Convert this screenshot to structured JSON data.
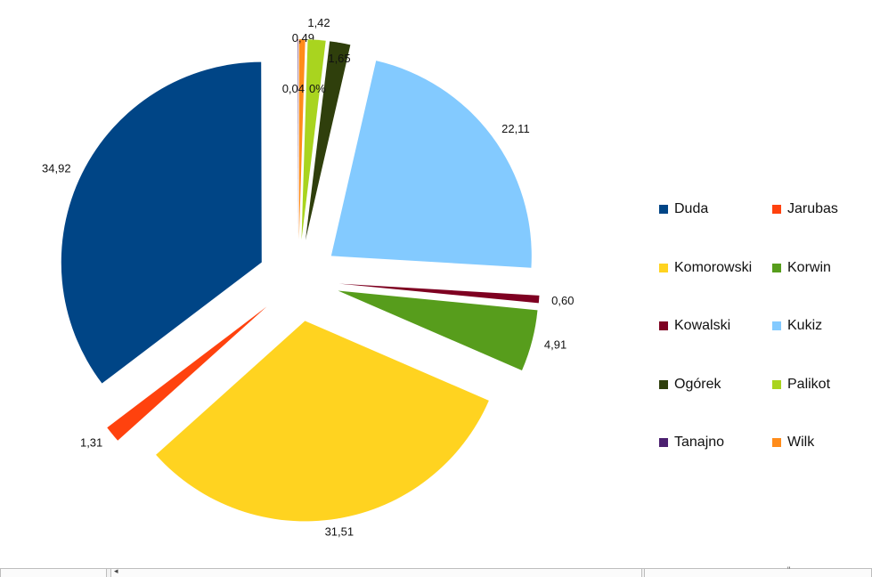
{
  "chart_data": {
    "type": "pie",
    "exploded": true,
    "start_angle_deg": 0,
    "direction": "clockwise",
    "slices": [
      {
        "name": "Wilk",
        "value": 0.49,
        "label": "0,49",
        "color": "#FF8C1A"
      },
      {
        "name": "Palikot",
        "value": 1.42,
        "label": "1,42",
        "color": "#A9D41F"
      },
      {
        "name": "Ogórek",
        "value": 1.65,
        "label": "1,65",
        "color": "#2F3F0C"
      },
      {
        "name": "Kukiz",
        "value": 22.11,
        "label": "22,11",
        "color": "#83CAFF"
      },
      {
        "name": "Kowalski",
        "value": 0.6,
        "label": "0,60",
        "color": "#7E0021"
      },
      {
        "name": "Korwin",
        "value": 4.91,
        "label": "4,91",
        "color": "#579D1C"
      },
      {
        "name": "Komorowski",
        "value": 31.51,
        "label": "31,51",
        "color": "#FFD320"
      },
      {
        "name": "Jarubas",
        "value": 1.31,
        "label": "1,31",
        "color": "#FF420E"
      },
      {
        "name": "Duda",
        "value": 34.92,
        "label": "34,92",
        "color": "#004586"
      },
      {
        "name": "Tanajno",
        "value": 0.04,
        "label": "0,04",
        "color": "#4B1F6F"
      },
      {
        "name": "",
        "value": 0.0,
        "label": "0%",
        "color": "#FFFFFF"
      }
    ],
    "legend": {
      "position": "right",
      "columns": 2,
      "entries": [
        {
          "name": "Duda",
          "color": "#004586"
        },
        {
          "name": "Jarubas",
          "color": "#FF420E"
        },
        {
          "name": "Komorowski",
          "color": "#FFD320"
        },
        {
          "name": "Korwin",
          "color": "#579D1C"
        },
        {
          "name": "Kowalski",
          "color": "#7E0021"
        },
        {
          "name": "Kukiz",
          "color": "#83CAFF"
        },
        {
          "name": "Ogórek",
          "color": "#2F3F0C"
        },
        {
          "name": "Palikot",
          "color": "#A9D41F"
        },
        {
          "name": "Tanajno",
          "color": "#4B1F6F"
        },
        {
          "name": "Wilk",
          "color": "#FF8C1A"
        }
      ]
    }
  },
  "scrollbar": {
    "left_arrow": "◂",
    "grip": "\""
  }
}
